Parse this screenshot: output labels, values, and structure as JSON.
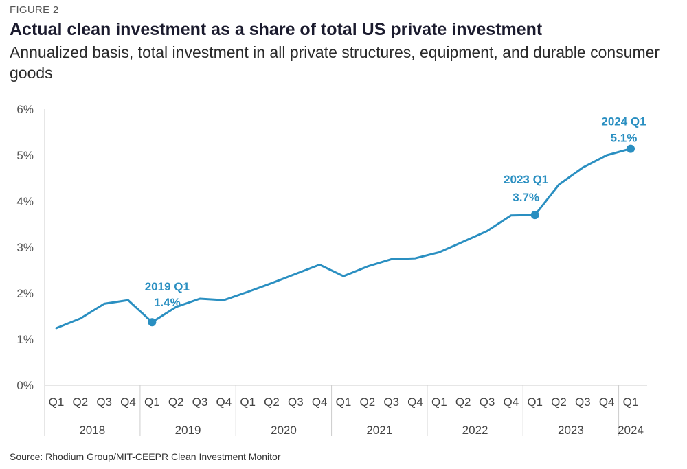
{
  "figure_label": "FIGURE 2",
  "source": "Source: Rhodium Group/MIT-CEEPR Clean Investment Monitor",
  "colors": {
    "line": "#2a8fc1",
    "axis": "#cccccc",
    "text": "#444444"
  },
  "chart_data": {
    "type": "line",
    "title": "Actual clean investment as a share of total US private investment",
    "subtitle": "Annualized basis, total investment in all private structures, equipment, and durable consumer goods",
    "x": [
      "2018 Q1",
      "2018 Q2",
      "2018 Q3",
      "2018 Q4",
      "2019 Q1",
      "2019 Q2",
      "2019 Q3",
      "2019 Q4",
      "2020 Q1",
      "2020 Q2",
      "2020 Q3",
      "2020 Q4",
      "2021 Q1",
      "2021 Q2",
      "2021 Q3",
      "2021 Q4",
      "2022 Q1",
      "2022 Q2",
      "2022 Q3",
      "2022 Q4",
      "2023 Q1",
      "2023 Q2",
      "2023 Q3",
      "2023 Q4",
      "2024 Q1"
    ],
    "quarter_labels": [
      "Q1",
      "Q2",
      "Q3",
      "Q4",
      "Q1",
      "Q2",
      "Q3",
      "Q4",
      "Q1",
      "Q2",
      "Q3",
      "Q4",
      "Q1",
      "Q2",
      "Q3",
      "Q4",
      "Q1",
      "Q2",
      "Q3",
      "Q4",
      "Q1",
      "Q2",
      "Q3",
      "Q4",
      "Q1"
    ],
    "year_groups": [
      {
        "label": "2018",
        "start": 0,
        "end": 3
      },
      {
        "label": "2019",
        "start": 4,
        "end": 7
      },
      {
        "label": "2020",
        "start": 8,
        "end": 11
      },
      {
        "label": "2021",
        "start": 12,
        "end": 15
      },
      {
        "label": "2022",
        "start": 16,
        "end": 19
      },
      {
        "label": "2023",
        "start": 20,
        "end": 23
      },
      {
        "label": "2024",
        "start": 24,
        "end": 24
      }
    ],
    "series": [
      {
        "values": [
          1.24,
          1.45,
          1.77,
          1.85,
          1.37,
          1.7,
          1.88,
          1.85,
          2.03,
          2.22,
          2.42,
          2.62,
          2.37,
          2.58,
          2.74,
          2.76,
          2.89,
          3.12,
          3.35,
          3.69,
          3.7,
          4.36,
          4.73,
          5.0,
          5.14
        ]
      }
    ],
    "ylim": [
      0,
      6
    ],
    "yticks": [
      0,
      1,
      2,
      3,
      4,
      5,
      6
    ],
    "ytick_labels": [
      "0%",
      "1%",
      "2%",
      "3%",
      "4%",
      "5%",
      "6%"
    ],
    "grid": false,
    "legend": "none",
    "annotations": [
      {
        "index": 4,
        "label": "2019 Q1",
        "value_label": "1.4%"
      },
      {
        "index": 20,
        "label": "2023 Q1",
        "value_label": "3.7%"
      },
      {
        "index": 24,
        "label": "2024 Q1",
        "value_label": "5.1%"
      }
    ]
  }
}
